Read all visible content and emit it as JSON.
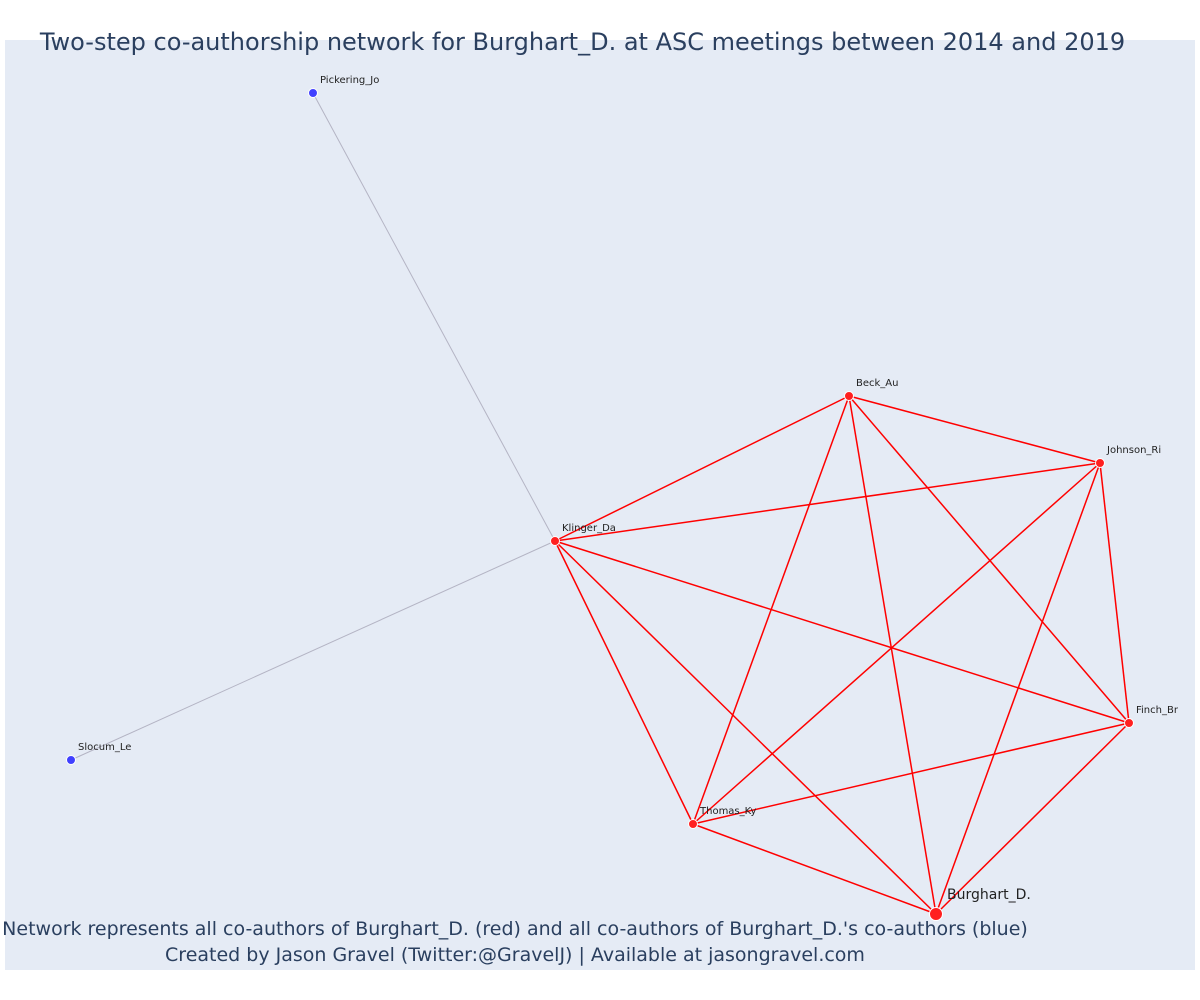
{
  "title": "Two-step co-authorship network for Burghart_D. at ASC meetings between 2014 and 2019",
  "caption": {
    "line1": "Network represents all co-authors of Burghart_D. (red) and all co-authors of Burghart_D.'s co-authors (blue)",
    "line2": "Created by Jason Gravel (Twitter:@GravelJ) | Available at jasongravel.com"
  },
  "colors": {
    "background": "#e5ebf5",
    "coauthor_node": "#ff2020",
    "second_step_node": "#4040ff",
    "coauthor_edge": "#ff0000",
    "second_step_edge": "#b4b4c4",
    "title_text": "#2a3f5f"
  },
  "network": {
    "focal": "Burghart_D.",
    "nodes": [
      {
        "id": "Pickering_Jo",
        "label": "Pickering_Jo",
        "group": "second_step"
      },
      {
        "id": "Slocum_Le",
        "label": "Slocum_Le",
        "group": "second_step"
      },
      {
        "id": "Beck_Au",
        "label": "Beck_Au",
        "group": "coauthor"
      },
      {
        "id": "Johnson_Ri",
        "label": "Johnson_Ri",
        "group": "coauthor"
      },
      {
        "id": "Klinger_Da",
        "label": "Klinger_Da",
        "group": "coauthor"
      },
      {
        "id": "Finch_Br",
        "label": "Finch_Br",
        "group": "coauthor"
      },
      {
        "id": "Thomas_Ky",
        "label": "Thomas_Ky",
        "group": "coauthor"
      },
      {
        "id": "Burghart_D.",
        "label": "Burghart_D.",
        "group": "focal"
      }
    ],
    "edges": [
      [
        "Klinger_Da",
        "Pickering_Jo"
      ],
      [
        "Klinger_Da",
        "Slocum_Le"
      ],
      [
        "Klinger_Da",
        "Beck_Au"
      ],
      [
        "Klinger_Da",
        "Johnson_Ri"
      ],
      [
        "Klinger_Da",
        "Finch_Br"
      ],
      [
        "Klinger_Da",
        "Thomas_Ky"
      ],
      [
        "Klinger_Da",
        "Burghart_D."
      ],
      [
        "Beck_Au",
        "Johnson_Ri"
      ],
      [
        "Beck_Au",
        "Finch_Br"
      ],
      [
        "Beck_Au",
        "Thomas_Ky"
      ],
      [
        "Beck_Au",
        "Burghart_D."
      ],
      [
        "Johnson_Ri",
        "Finch_Br"
      ],
      [
        "Johnson_Ri",
        "Thomas_Ky"
      ],
      [
        "Johnson_Ri",
        "Burghart_D."
      ],
      [
        "Finch_Br",
        "Thomas_Ky"
      ],
      [
        "Finch_Br",
        "Burghart_D."
      ],
      [
        "Thomas_Ky",
        "Burghart_D."
      ]
    ]
  }
}
